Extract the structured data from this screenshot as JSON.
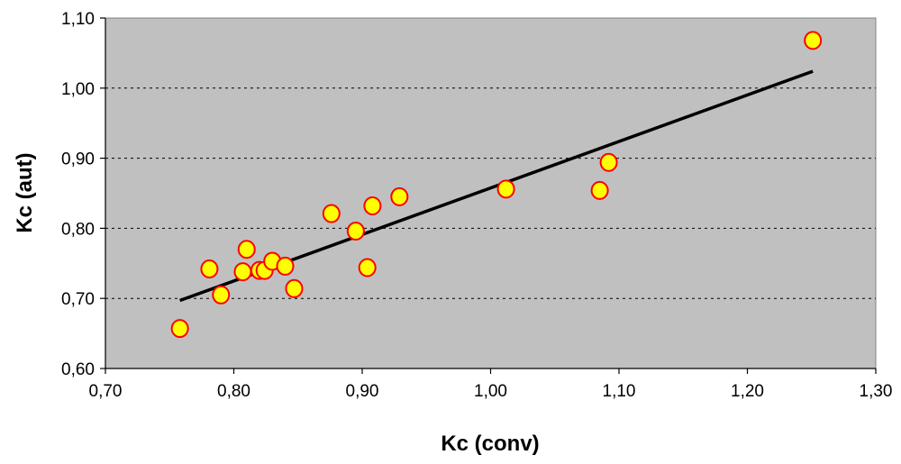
{
  "chart_data": {
    "type": "scatter",
    "title": "",
    "xlabel": "Kc (conv)",
    "ylabel": "Kc (aut)",
    "xlim": [
      0.7,
      1.3
    ],
    "ylim": [
      0.6,
      1.1
    ],
    "x_ticks": [
      "0,70",
      "0,80",
      "0,90",
      "1,00",
      "1,10",
      "1,20",
      "1,30"
    ],
    "y_ticks": [
      "0,60",
      "0,70",
      "0,80",
      "0,90",
      "1,00",
      "1,10"
    ],
    "x_tick_values": [
      0.7,
      0.8,
      0.9,
      1.0,
      1.1,
      1.2,
      1.3
    ],
    "y_tick_values": [
      0.6,
      0.7,
      0.8,
      0.9,
      1.0,
      1.1
    ],
    "grid": "horizontal dashed",
    "legend": "none",
    "plot_background": "#c0c0c0",
    "marker_fill": "#ffff00",
    "marker_edge": "#ff0000",
    "trendline_color": "#000000",
    "points": [
      {
        "x": 0.758,
        "y": 0.657
      },
      {
        "x": 0.781,
        "y": 0.742
      },
      {
        "x": 0.79,
        "y": 0.705
      },
      {
        "x": 0.807,
        "y": 0.738
      },
      {
        "x": 0.81,
        "y": 0.77
      },
      {
        "x": 0.82,
        "y": 0.74
      },
      {
        "x": 0.824,
        "y": 0.74
      },
      {
        "x": 0.83,
        "y": 0.753
      },
      {
        "x": 0.84,
        "y": 0.746
      },
      {
        "x": 0.847,
        "y": 0.714
      },
      {
        "x": 0.876,
        "y": 0.821
      },
      {
        "x": 0.895,
        "y": 0.796
      },
      {
        "x": 0.904,
        "y": 0.744
      },
      {
        "x": 0.908,
        "y": 0.832
      },
      {
        "x": 0.929,
        "y": 0.845
      },
      {
        "x": 1.012,
        "y": 0.856
      },
      {
        "x": 1.085,
        "y": 0.854
      },
      {
        "x": 1.092,
        "y": 0.894
      },
      {
        "x": 1.251,
        "y": 1.068
      }
    ],
    "trendline": {
      "x": [
        0.758,
        1.251
      ],
      "y": [
        0.697,
        1.024
      ]
    }
  }
}
